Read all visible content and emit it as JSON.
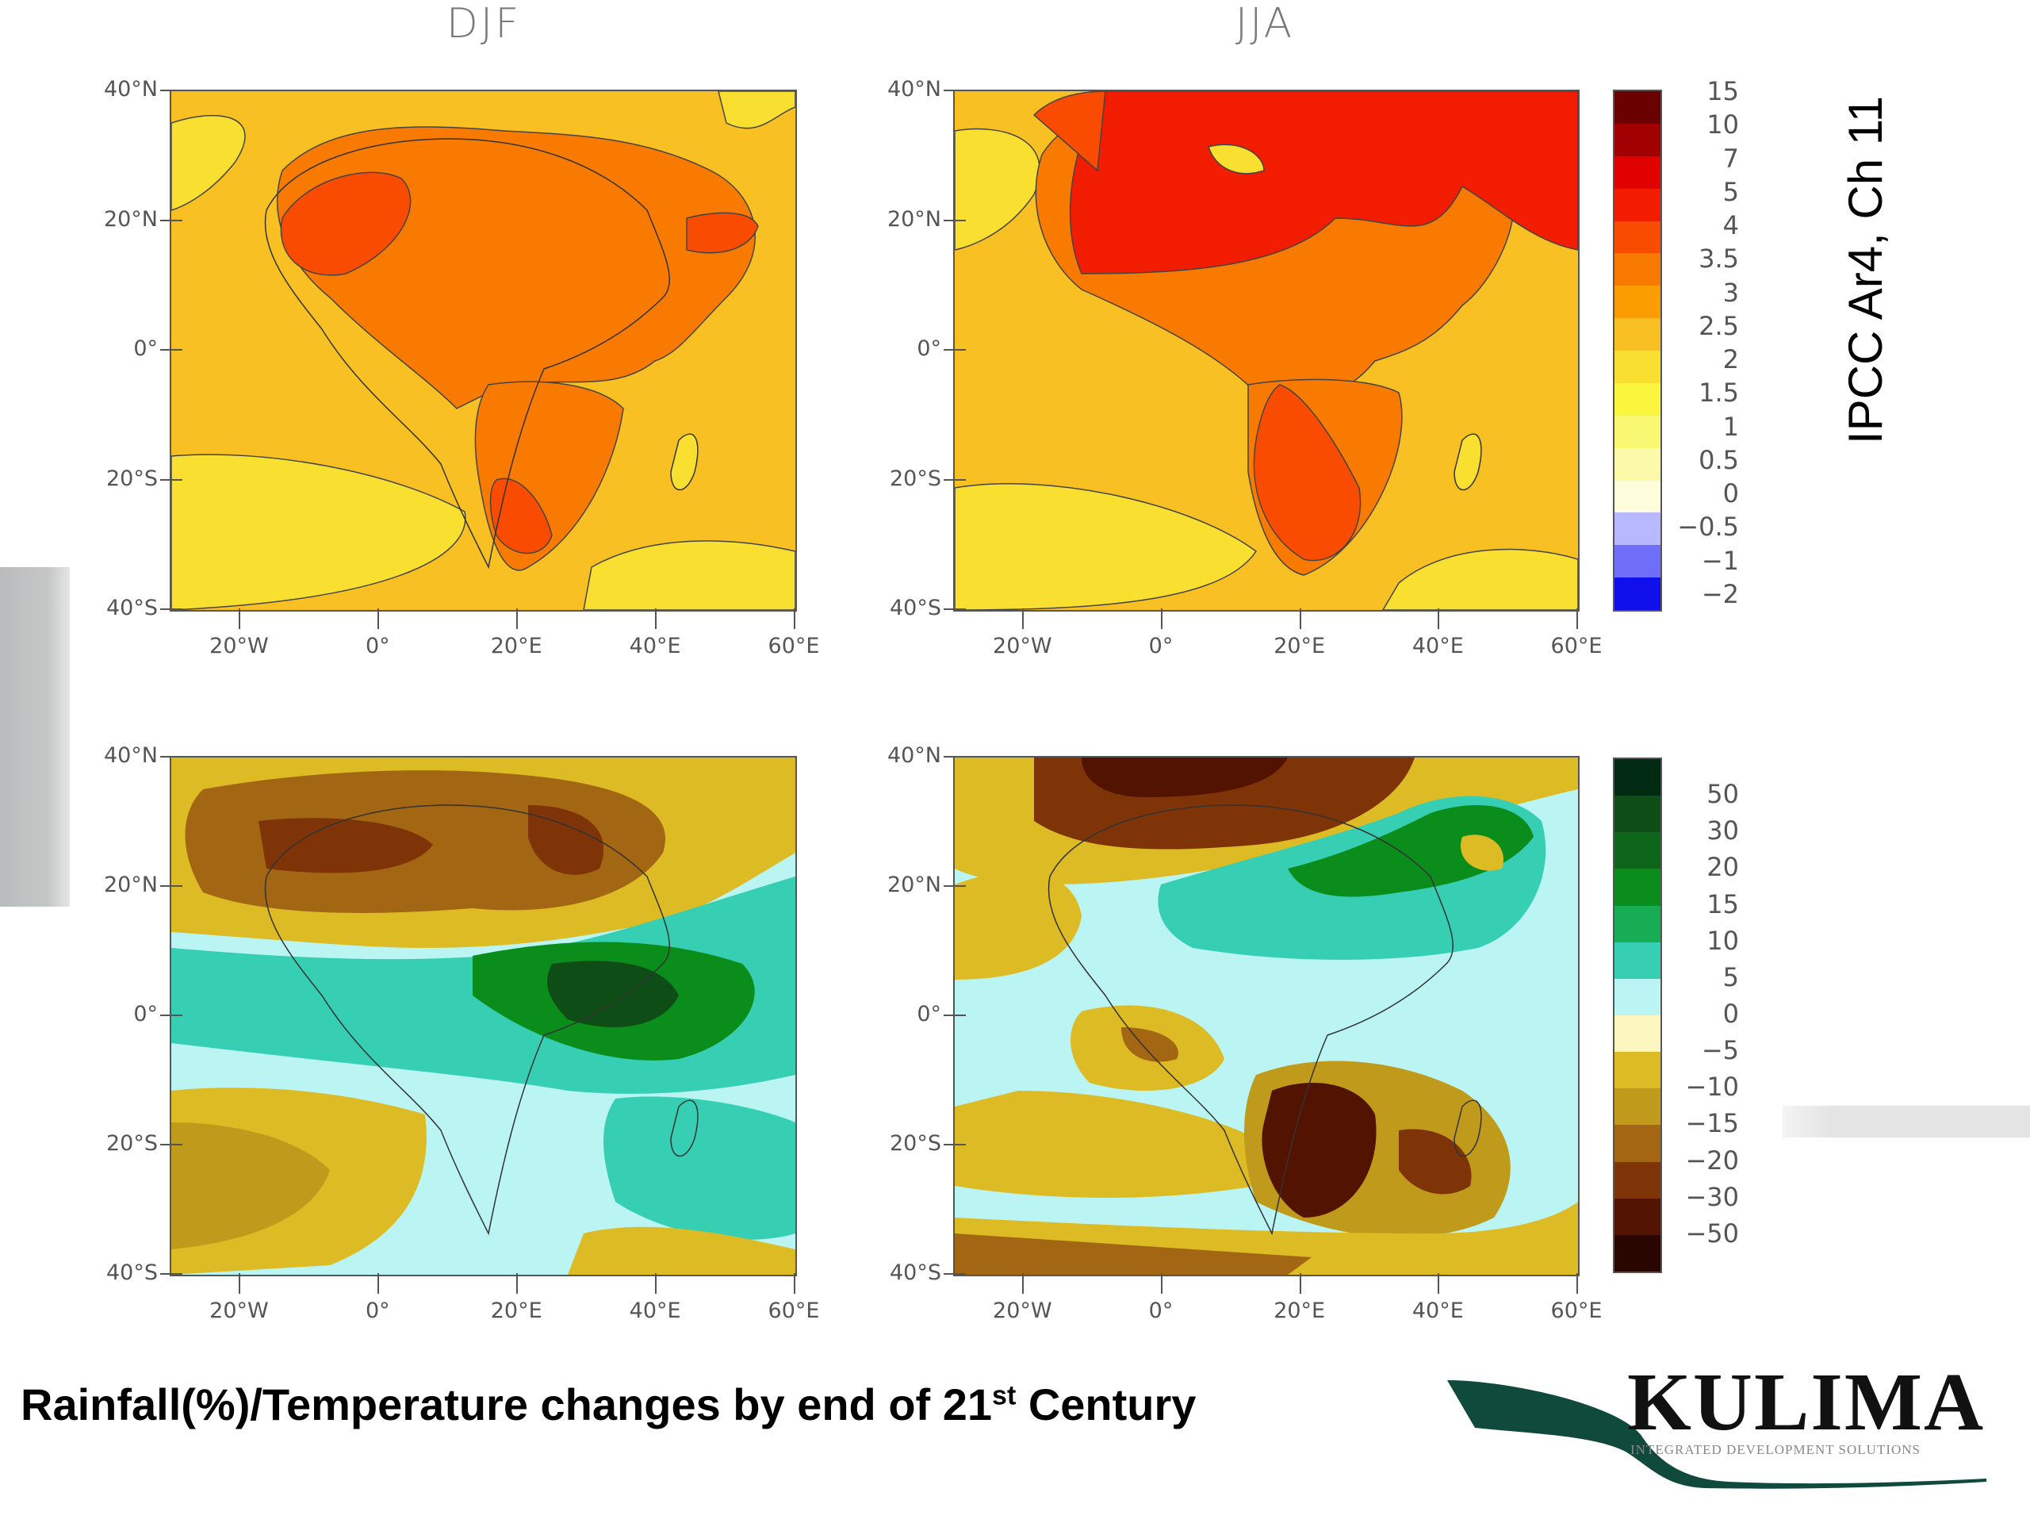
{
  "seasons": {
    "djf": "DJF",
    "jja": "JJA"
  },
  "lat_ticks": [
    "40°N",
    "20°N",
    "0°",
    "20°S",
    "40°S"
  ],
  "lon_ticks": [
    "20°W",
    "0°",
    "20°E",
    "40°E",
    "60°E"
  ],
  "temperature_legend": {
    "labels": [
      "15",
      "10",
      "7",
      "5",
      "4",
      "3.5",
      "3",
      "2.5",
      "2",
      "1.5",
      "1",
      "0.5",
      "0",
      "−0.5",
      "−1",
      "−2"
    ],
    "colors": [
      "#6b0000",
      "#a00000",
      "#e00000",
      "#f21d00",
      "#f94c00",
      "#f97a00",
      "#fb9c00",
      "#f8c022",
      "#f9e030",
      "#fbf53e",
      "#f8f872",
      "#fafaa8",
      "#fdfddc",
      "#b8b8ff",
      "#6e6ef8",
      "#1010ec"
    ]
  },
  "rainfall_legend": {
    "labels": [
      "50",
      "30",
      "20",
      "15",
      "10",
      "5",
      "0",
      "−5",
      "−10",
      "−15",
      "−20",
      "−30",
      "−50"
    ],
    "colors": [
      "#002a12",
      "#0e4d16",
      "#0e661a",
      "#0b8d1c",
      "#16ad54",
      "#36cfb4",
      "#baf5f4",
      "#fdf6bf",
      "#dcbb24",
      "#c09a1a",
      "#a36612",
      "#7e3406",
      "#521300",
      "#2a0600"
    ]
  },
  "side_title": "IPCC Ar4, Ch 11",
  "footer": {
    "main": "Rainfall(%)/Temperature changes by end of 21",
    "sup": "st",
    "end": " Century"
  },
  "logo": {
    "name": "KULIMA",
    "tagline": "INTEGRATED DEVELOPMENT SOLUTIONS"
  }
}
